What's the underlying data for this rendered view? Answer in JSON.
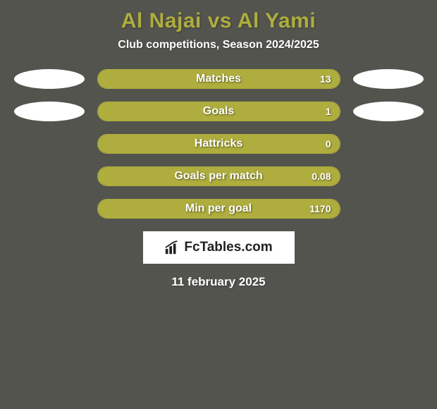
{
  "background_color": "#53544e",
  "title": {
    "text": "Al Najai vs Al Yami",
    "color": "#aead3e",
    "fontsize": 30
  },
  "subtitle": {
    "text": "Club competitions, Season 2024/2025",
    "color": "#ffffff",
    "fontsize": 16
  },
  "accent_color": "#aead3e",
  "bar_fill_color": "#aead3e",
  "bar_border_color": "#aead3e",
  "ellipse_color": "#ffffff",
  "rows": [
    {
      "label": "Matches",
      "value": "13",
      "fill_pct": 100,
      "show_ellipses": true
    },
    {
      "label": "Goals",
      "value": "1",
      "fill_pct": 100,
      "show_ellipses": true
    },
    {
      "label": "Hattricks",
      "value": "0",
      "fill_pct": 100,
      "show_ellipses": false
    },
    {
      "label": "Goals per match",
      "value": "0.08",
      "fill_pct": 100,
      "show_ellipses": false
    },
    {
      "label": "Min per goal",
      "value": "1170",
      "fill_pct": 100,
      "show_ellipses": false
    }
  ],
  "logo": {
    "text": "FcTables.com",
    "box_bg": "#ffffff",
    "text_color": "#222222"
  },
  "date": {
    "text": "11 february 2025",
    "color": "#ffffff",
    "fontsize": 17
  }
}
